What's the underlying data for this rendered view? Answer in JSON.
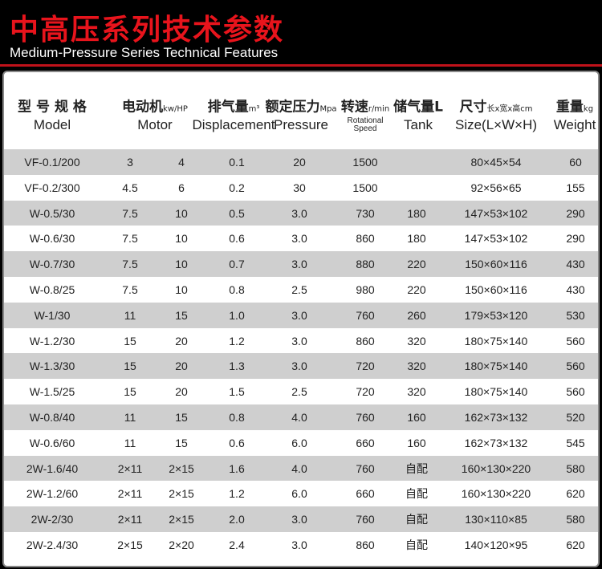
{
  "header": {
    "title": "中高压系列技术参数",
    "subtitle": "Medium-Pressure Series Technical Features"
  },
  "table": {
    "columns": [
      {
        "zh": "型 号 规 格",
        "en": "Model"
      },
      {
        "zh": "电动机",
        "unit": "kw/HP",
        "en": "Motor"
      },
      {
        "zh": "排气量",
        "unit": "m³",
        "en": "Displacement"
      },
      {
        "zh": "额定压力",
        "unit": "Mpa",
        "en": "Pressure"
      },
      {
        "zh": "转速",
        "unit": "r/min",
        "en": "Rotational Speed"
      },
      {
        "zh": "储气量L",
        "en": "Tank"
      },
      {
        "zh": "尺寸",
        "unit": "长x宽x高cm",
        "en": "Size(L×W×H)"
      },
      {
        "zh": "重量",
        "unit": "kg",
        "en": "Weight"
      }
    ],
    "rows": [
      [
        "VF-0.1/200",
        "3",
        "4",
        "0.1",
        "20",
        "1500",
        null,
        "80×45×54",
        "60"
      ],
      [
        "VF-0.2/300",
        "4.5",
        "6",
        "0.2",
        "30",
        "1500",
        null,
        "92×56×65",
        "155"
      ],
      [
        "W-0.5/30",
        "7.5",
        "10",
        "0.5",
        "3.0",
        "730",
        "180",
        "147×53×102",
        "290"
      ],
      [
        "W-0.6/30",
        "7.5",
        "10",
        "0.6",
        "3.0",
        "860",
        "180",
        "147×53×102",
        "290"
      ],
      [
        "W-0.7/30",
        "7.5",
        "10",
        "0.7",
        "3.0",
        "880",
        "220",
        "150×60×116",
        "430"
      ],
      [
        "W-0.8/25",
        "7.5",
        "10",
        "0.8",
        "2.5",
        "980",
        "220",
        "150×60×116",
        "430"
      ],
      [
        "W-1/30",
        "11",
        "15",
        "1.0",
        "3.0",
        "760",
        "260",
        "179×53×120",
        "530"
      ],
      [
        "W-1.2/30",
        "15",
        "20",
        "1.2",
        "3.0",
        "860",
        "320",
        "180×75×140",
        "560"
      ],
      [
        "W-1.3/30",
        "15",
        "20",
        "1.3",
        "3.0",
        "720",
        "320",
        "180×75×140",
        "560"
      ],
      [
        "W-1.5/25",
        "15",
        "20",
        "1.5",
        "2.5",
        "720",
        "320",
        "180×75×140",
        "560"
      ],
      [
        "W-0.8/40",
        "11",
        "15",
        "0.8",
        "4.0",
        "760",
        "160",
        "162×73×132",
        "520"
      ],
      [
        "W-0.6/60",
        "11",
        "15",
        "0.6",
        "6.0",
        "660",
        "160",
        "162×73×132",
        "545"
      ],
      [
        "2W-1.6/40",
        "2×11",
        "2×15",
        "1.6",
        "4.0",
        "760",
        "自配",
        "160×130×220",
        "580"
      ],
      [
        "2W-1.2/60",
        "2×11",
        "2×15",
        "1.2",
        "6.0",
        "660",
        "自配",
        "160×130×220",
        "620"
      ],
      [
        "2W-2/30",
        "2×11",
        "2×15",
        "2.0",
        "3.0",
        "760",
        "自配",
        "130×110×85",
        "580"
      ],
      [
        "2W-2.4/30",
        "2×15",
        "2×20",
        "2.4",
        "3.0",
        "860",
        "自配",
        "140×120×95",
        "620"
      ]
    ]
  }
}
